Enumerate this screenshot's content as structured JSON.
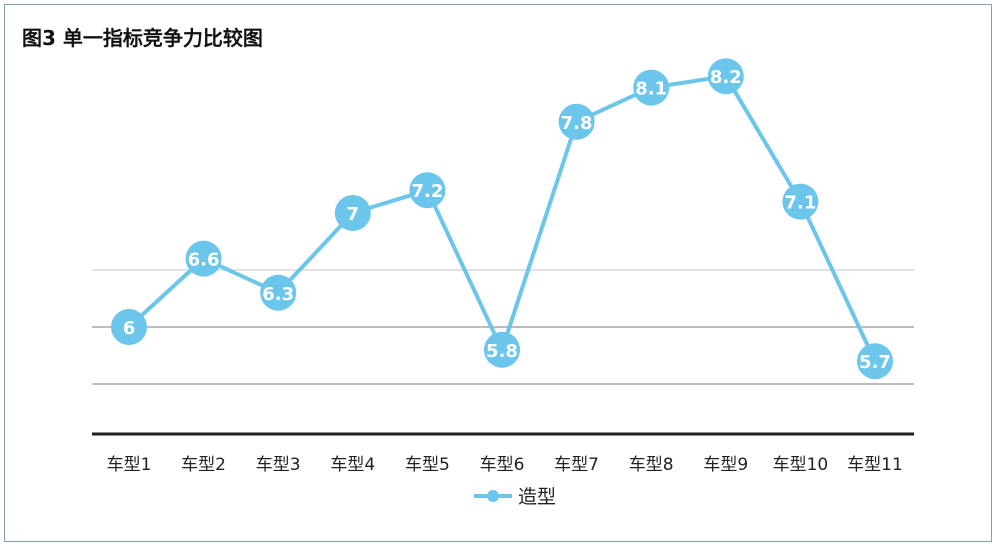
{
  "title": "图3  单一指标竞争力比较图",
  "chart_data": {
    "type": "line",
    "categories": [
      "车型1",
      "车型2",
      "车型3",
      "车型4",
      "车型5",
      "车型6",
      "车型7",
      "车型8",
      "车型9",
      "车型10",
      "车型11"
    ],
    "series": [
      {
        "name": "造型",
        "values": [
          6,
          6.6,
          6.3,
          7,
          7.2,
          5.8,
          7.8,
          8.1,
          8.2,
          7.1,
          5.7
        ]
      }
    ],
    "data_labels": [
      "6",
      "6.6",
      "6.3",
      "7",
      "7.2",
      "5.8",
      "7.8",
      "8.1",
      "8.2",
      "7.1",
      "5.7"
    ],
    "grid": true,
    "legend": "bottom",
    "colors": {
      "series": "#6cc6ec",
      "grid": "#bfbfbf",
      "axis": "#222222",
      "label": "#ffffff"
    }
  }
}
